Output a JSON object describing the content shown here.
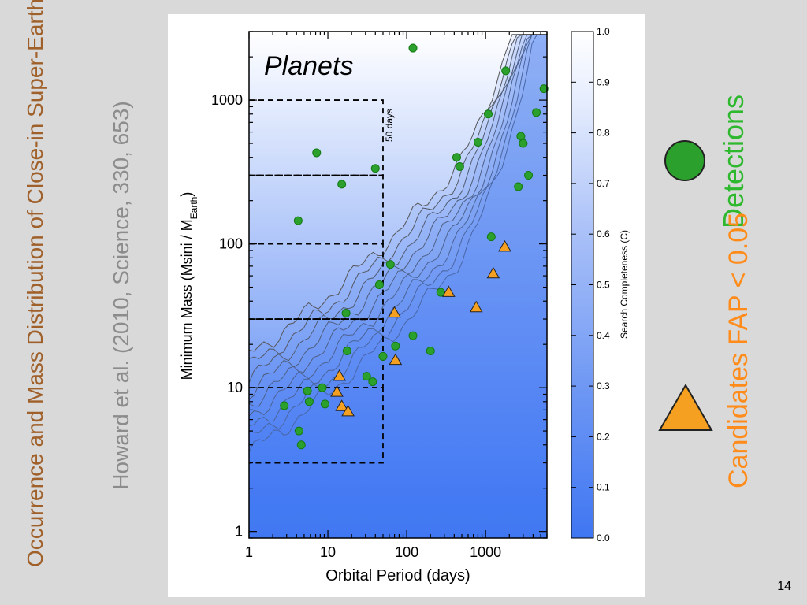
{
  "slide": {
    "title": "Occurrence and Mass Distribution of Close-in Super-Earths, Neptunes, and Jupiters",
    "citation": "Howard et al. (2010, Science, 330, 653)",
    "detections_label": "Detections",
    "candidates_label": "Candidates FAP < 0.05",
    "page_number": "14"
  },
  "colors": {
    "title": "#a0602a",
    "detections": "#2ca02c",
    "candidates": "#f5a020",
    "completeness_low": "#3f76f2",
    "completeness_high": "#ffffff"
  },
  "chart_data": {
    "type": "scatter",
    "title": "Planets",
    "xlabel": "Orbital Period (days)",
    "ylabel_main": "Minimum Mass (Msini / M",
    "ylabel_sub": "Earth",
    "ylabel_close": ")",
    "xscale": "log",
    "yscale": "log",
    "xlim": [
      1,
      6000
    ],
    "ylim": [
      0.9,
      3000
    ],
    "xticks": [
      1,
      10,
      100,
      1000
    ],
    "xtick_labels": [
      "1",
      "10",
      "100",
      "1000"
    ],
    "yticks": [
      1,
      10,
      100,
      1000
    ],
    "ytick_labels": [
      "1",
      "10",
      "100",
      "1000"
    ],
    "boundary_label": "50 days",
    "boundary_period": 50,
    "mass_boxes": [
      [
        3,
        10
      ],
      [
        10,
        30
      ],
      [
        30,
        100
      ],
      [
        100,
        300
      ],
      [
        300,
        1000
      ]
    ],
    "colorbar": {
      "label": "Search Completeness (C)",
      "ticks": [
        "0.0",
        "0.1",
        "0.2",
        "0.3",
        "0.4",
        "0.5",
        "0.6",
        "0.7",
        "0.8",
        "0.9",
        "1.0"
      ]
    },
    "series": [
      {
        "name": "Detections",
        "marker": "circle",
        "points": [
          [
            2.8,
            7.5
          ],
          [
            4.2,
            145
          ],
          [
            4.3,
            5.0
          ],
          [
            4.6,
            4.0
          ],
          [
            5.5,
            9.5
          ],
          [
            5.8,
            8.0
          ],
          [
            7.2,
            430
          ],
          [
            8.5,
            10.0
          ],
          [
            9.2,
            7.7
          ],
          [
            15,
            260
          ],
          [
            17,
            33
          ],
          [
            17.5,
            18
          ],
          [
            31,
            12
          ],
          [
            37,
            11
          ],
          [
            40,
            335
          ],
          [
            45,
            52
          ],
          [
            50,
            16.5
          ],
          [
            62,
            72
          ],
          [
            72,
            19.5
          ],
          [
            120,
            2300
          ],
          [
            120,
            23
          ],
          [
            200,
            18
          ],
          [
            270,
            46
          ],
          [
            430,
            400
          ],
          [
            470,
            345
          ],
          [
            800,
            510
          ],
          [
            1080,
            800
          ],
          [
            1180,
            112
          ],
          [
            1800,
            1600
          ],
          [
            2600,
            250
          ],
          [
            2800,
            560
          ],
          [
            3000,
            500
          ],
          [
            3500,
            300
          ],
          [
            4400,
            820
          ],
          [
            5500,
            1200
          ]
        ]
      },
      {
        "name": "Candidates FAP < 0.05",
        "marker": "triangle",
        "points": [
          [
            13,
            9.3
          ],
          [
            14,
            12
          ],
          [
            15,
            7.4
          ],
          [
            18,
            6.8
          ],
          [
            70,
            33
          ],
          [
            72,
            15.5
          ],
          [
            340,
            46
          ],
          [
            760,
            36
          ],
          [
            1250,
            62
          ],
          [
            1750,
            95
          ]
        ]
      }
    ]
  }
}
